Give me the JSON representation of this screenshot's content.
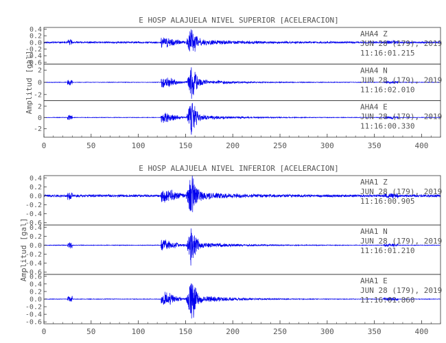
{
  "panels": [
    {
      "title": "E HOSP ALAJUELA NIVEL SUPERIOR [ACELERACION]",
      "ylabel": "Amplitud [gal]",
      "xlim": [
        0,
        420
      ],
      "xticks": [
        0,
        50,
        100,
        150,
        200,
        250,
        300,
        350,
        400
      ],
      "traces": [
        {
          "channel": "AHA4   Z",
          "date": "JUN 28 (179), 2019",
          "time": "11:16:01.215",
          "ylim": [
            -0.65,
            0.45
          ],
          "yticks": [
            "0.4",
            "0.2",
            "0.0",
            "-0.2",
            "-0.4",
            "-0.6"
          ],
          "yticks_num": [
            0.4,
            0.2,
            0.0,
            -0.2,
            -0.4,
            -0.6
          ],
          "bg": 0.03,
          "peak": 0.42,
          "seed": 11
        },
        {
          "channel": "AHA4   N",
          "date": "JUN 28 (179), 2019",
          "time": "11:16:02.010",
          "ylim": [
            -3,
            3
          ],
          "yticks": [
            "2",
            "0",
            "-2"
          ],
          "yticks_num": [
            2,
            0,
            -2
          ],
          "bg": 0.05,
          "peak": 2.6,
          "seed": 23
        },
        {
          "channel": "AHA4   E",
          "date": "JUN 28 (179), 2019",
          "time": "11:16:00.330",
          "ylim": [
            -3.5,
            3
          ],
          "yticks": [
            "2",
            "0",
            "-2"
          ],
          "yticks_num": [
            2,
            0,
            -2
          ],
          "bg": 0.05,
          "peak": 2.8,
          "seed": 37
        }
      ]
    },
    {
      "title": "E HOSP ALAJUELA NIVEL INFERIOR [ACELERACION]",
      "ylabel": "Amplitud [gal]",
      "xlim": [
        0,
        420
      ],
      "xticks": [
        0,
        50,
        100,
        150,
        200,
        250,
        300,
        350,
        400
      ],
      "traces": [
        {
          "channel": "AHA1   Z",
          "date": "JUN 28 (179), 2019",
          "time": "11:16:00.905",
          "ylim": [
            -0.65,
            0.45
          ],
          "yticks": [
            "0.4",
            "0.2",
            "0.0",
            "-0.2",
            "-0.4",
            "-0.6"
          ],
          "yticks_num": [
            0.4,
            0.2,
            0.0,
            -0.2,
            -0.4,
            -0.6
          ],
          "bg": 0.03,
          "peak": 0.42,
          "seed": 41
        },
        {
          "channel": "AHA1   N",
          "date": "JUN 28 (179), 2019",
          "time": "11:16:01.210",
          "ylim": [
            -0.65,
            0.45
          ],
          "yticks": [
            "0.4",
            "0.2",
            "0.0",
            "-0.2",
            "-0.4",
            "-0.6"
          ],
          "yticks_num": [
            0.4,
            0.2,
            0.0,
            -0.2,
            -0.4,
            -0.6
          ],
          "bg": 0.008,
          "peak": 0.38,
          "seed": 53
        },
        {
          "channel": "AHA1   E",
          "date": "JUN 28 (179), 2019",
          "time": "11:16:01.860",
          "ylim": [
            -0.65,
            0.65
          ],
          "yticks": [
            "0.6",
            "0.4",
            "0.2",
            "0.0",
            "-0.2",
            "-0.4",
            "-0.6"
          ],
          "yticks_num": [
            0.6,
            0.4,
            0.2,
            0.0,
            -0.2,
            -0.4,
            -0.6
          ],
          "bg": 0.008,
          "peak": 0.55,
          "seed": 67
        }
      ]
    }
  ],
  "colors": {
    "trace": "#0000ee",
    "axis": "#333333",
    "text": "#555555",
    "background": "#ffffff"
  },
  "chart_data": [
    {
      "type": "line",
      "title": "E HOSP ALAJUELA NIVEL SUPERIOR [ACELERACION]",
      "xlabel": "",
      "ylabel": "Amplitud [gal]",
      "xlim": [
        0,
        420
      ],
      "series": [
        {
          "name": "AHA4   Z",
          "ylim": [
            -0.65,
            0.45
          ],
          "peak_amplitude": 0.42,
          "peak_time": 155
        },
        {
          "name": "AHA4   N",
          "ylim": [
            -3,
            3
          ],
          "peak_amplitude": 2.6,
          "peak_time": 155
        },
        {
          "name": "AHA4   E",
          "ylim": [
            -3.5,
            3
          ],
          "peak_amplitude": 2.8,
          "peak_time": 155
        }
      ],
      "grid": false,
      "legend": "right"
    },
    {
      "type": "line",
      "title": "E HOSP ALAJUELA NIVEL INFERIOR [ACELERACION]",
      "xlabel": "",
      "ylabel": "Amplitud [gal]",
      "xlim": [
        0,
        420
      ],
      "series": [
        {
          "name": "AHA1   Z",
          "ylim": [
            -0.65,
            0.45
          ],
          "peak_amplitude": 0.42,
          "peak_time": 155
        },
        {
          "name": "AHA1   N",
          "ylim": [
            -0.65,
            0.45
          ],
          "peak_amplitude": 0.38,
          "peak_time": 155
        },
        {
          "name": "AHA1   E",
          "ylim": [
            -0.65,
            0.65
          ],
          "peak_amplitude": 0.55,
          "peak_time": 155
        }
      ],
      "grid": false,
      "legend": "right"
    }
  ]
}
